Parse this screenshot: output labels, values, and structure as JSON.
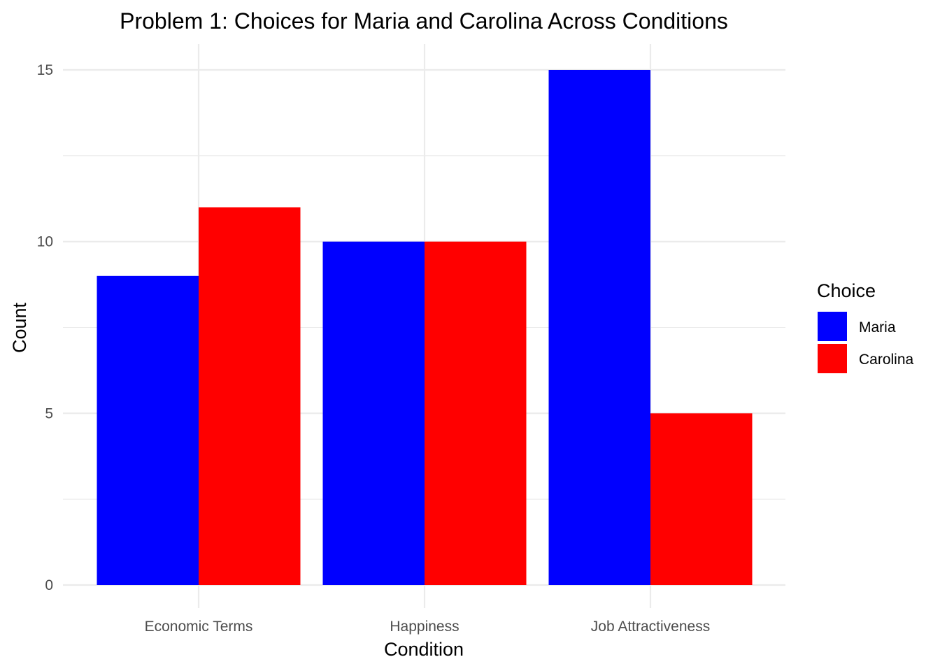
{
  "chart_data": {
    "type": "bar",
    "title": "Problem 1: Choices for Maria and Carolina Across Conditions",
    "xlabel": "Condition",
    "ylabel": "Count",
    "categories": [
      "Economic Terms",
      "Happiness",
      "Job Attractiveness"
    ],
    "series": [
      {
        "name": "Maria",
        "values": [
          9,
          10,
          15
        ],
        "color": "#0000ff"
      },
      {
        "name": "Carolina",
        "values": [
          11,
          10,
          5
        ],
        "color": "#ff0000"
      }
    ],
    "ylim": [
      0,
      15
    ],
    "yticks": [
      0,
      5,
      10,
      15
    ],
    "grid": true,
    "legend": {
      "title": "Choice",
      "position": "right"
    }
  }
}
